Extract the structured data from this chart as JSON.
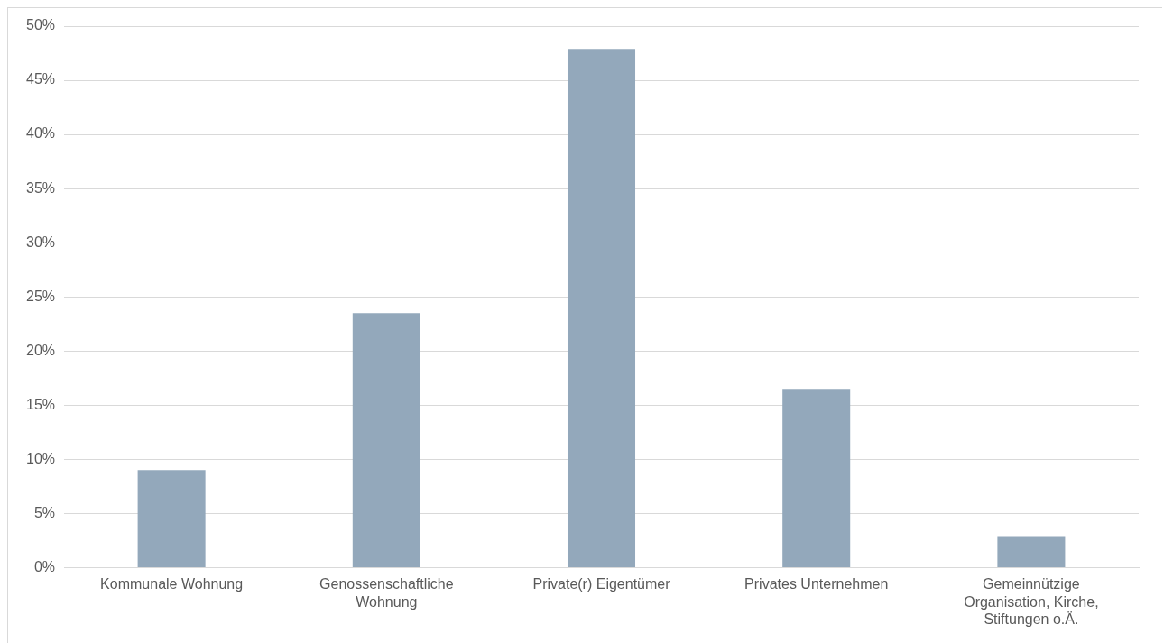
{
  "chart_data": {
    "type": "bar",
    "categories": [
      "Kommunale Wohnung",
      "Genossenschaftliche Wohnung",
      "Private(r) Eigentümer",
      "Privates Unternehmen",
      "Gemeinnützige Organisation, Kirche, Stiftungen o.Ä."
    ],
    "values": [
      9.0,
      23.5,
      47.9,
      16.5,
      2.9
    ],
    "color": "#93a8bb",
    "ylim": [
      0,
      50
    ],
    "yticks": [
      {
        "value": 0,
        "label": "0%"
      },
      {
        "value": 5,
        "label": "5%"
      },
      {
        "value": 10,
        "label": "10%"
      },
      {
        "value": 15,
        "label": "15%"
      },
      {
        "value": 20,
        "label": "20%"
      },
      {
        "value": 25,
        "label": "25%"
      },
      {
        "value": 30,
        "label": "30%"
      },
      {
        "value": 35,
        "label": "35%"
      },
      {
        "value": 40,
        "label": "40%"
      },
      {
        "value": 45,
        "label": "45%"
      },
      {
        "value": 50,
        "label": "50%"
      }
    ],
    "grid": "y",
    "legend": false
  }
}
